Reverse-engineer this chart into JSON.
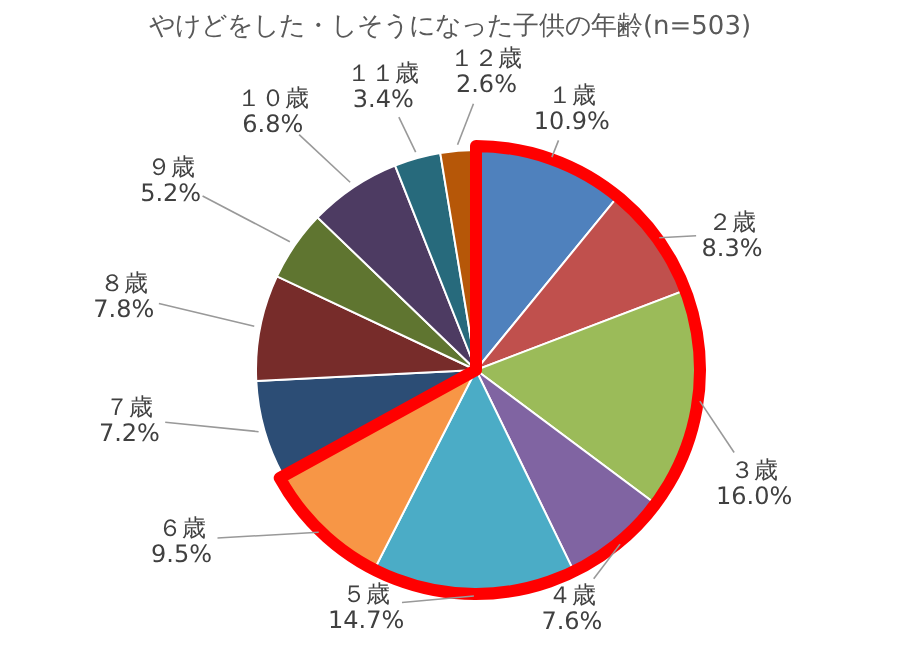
{
  "chart_data": {
    "type": "pie",
    "title": "やけどをした・しそうになった子供の年齢(n=503)",
    "categories": [
      "１歳",
      "２歳",
      "３歳",
      "４歳",
      "５歳",
      "６歳",
      "７歳",
      "８歳",
      "９歳",
      "１０歳",
      "１１歳",
      "１２歳"
    ],
    "values": [
      10.9,
      8.3,
      16.0,
      7.6,
      14.7,
      9.5,
      7.2,
      7.8,
      5.2,
      6.8,
      3.4,
      2.6
    ],
    "value_labels": [
      "10.9%",
      "8.3%",
      "16.0%",
      "7.6%",
      "14.7%",
      "9.5%",
      "7.2%",
      "7.8%",
      "5.2%",
      "6.8%",
      "3.4%",
      "2.6%"
    ],
    "colors": [
      "#4f81bd",
      "#c0504d",
      "#9bbb59",
      "#8064a2",
      "#4bacc6",
      "#f79646",
      "#2c4d75",
      "#772c2a",
      "#5f7530",
      "#4d3b62",
      "#276a7c",
      "#b65708"
    ]
  }
}
